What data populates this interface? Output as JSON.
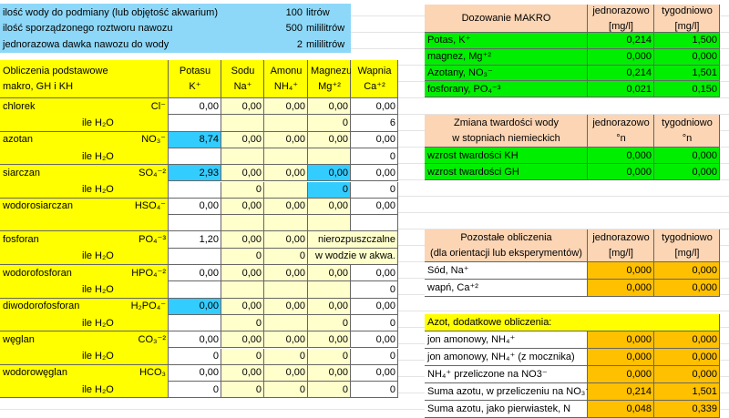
{
  "settings": {
    "rows": [
      {
        "label": "ilość wody do podmiany (lub objętość akwarium)",
        "value": "100",
        "unit": "litrów"
      },
      {
        "label": "ilość sporządzonego roztworu nawozu",
        "value": "500",
        "unit": "mililitrów"
      },
      {
        "label": "jednorazowa dawka nawozu do wody",
        "value": "2",
        "unit": "mililitrów"
      }
    ]
  },
  "basic": {
    "title": [
      "Obliczenia podstawowe",
      "makro, GH i KH"
    ],
    "columns": [
      {
        "name": "Potasu",
        "ion": "K⁺"
      },
      {
        "name": "Sodu",
        "ion": "Na⁺"
      },
      {
        "name": "Amonu",
        "ion": "NH₄⁺"
      },
      {
        "name": "Magnezu",
        "ion": "Mg⁺²"
      },
      {
        "name": "Wapnia",
        "ion": "Ca⁺²"
      }
    ],
    "rows": [
      {
        "name": "chlorek",
        "formula": "Cl⁻",
        "values": [
          "0,00",
          "0,00",
          "0,00",
          "0,00",
          "0,00"
        ],
        "water_label": "ile H₂O",
        "water": [
          null,
          null,
          null,
          "0",
          "6"
        ]
      },
      {
        "name": "azotan",
        "formula": "NO₃⁻",
        "values": [
          "8,74",
          "0,00",
          "0,00",
          "0,00",
          "0,00"
        ],
        "water_label": "ile H₂O",
        "water": [
          null,
          null,
          null,
          null,
          "0"
        ]
      },
      {
        "name": "siarczan",
        "formula": "SO₄⁻²",
        "values": [
          "2,93",
          "0,00",
          "0,00",
          "0,00",
          "0,00"
        ],
        "water_label": "ile H₂O",
        "water": [
          null,
          "0",
          null,
          "0",
          "0"
        ]
      },
      {
        "name": "wodorosiarczan",
        "formula": "HSO₄⁻",
        "values": [
          "0,00",
          "0,00",
          "0,00",
          "0,00",
          "0,00"
        ],
        "water": [
          null,
          null,
          null,
          null,
          null
        ]
      },
      {
        "name": "fosforan",
        "formula": "PO₄⁻³",
        "values": [
          "1,20",
          "0,00",
          "0,00",
          null,
          null
        ],
        "note": [
          "nierozpuszczalne",
          "w wodzie w akwa."
        ],
        "water_label": "ile H₂O",
        "water": [
          null,
          "0",
          "0",
          null,
          null
        ]
      },
      {
        "name": "wodorofosforan",
        "formula": "HPO₄⁻²",
        "values": [
          "0,00",
          "0,00",
          "0,00",
          "0,00",
          "0,00"
        ],
        "water_label": "ile H₂O",
        "water": [
          null,
          null,
          null,
          null,
          "0"
        ]
      },
      {
        "name": "diwodorofosforan",
        "formula": "H₂PO₄⁻",
        "values": [
          "0,00",
          "0,00",
          "0,00",
          "0,00",
          "0,00"
        ],
        "water_label": "ile H₂O",
        "water": [
          null,
          "0",
          null,
          "0",
          "0"
        ]
      },
      {
        "name": "węglan",
        "formula": "CO₃⁻²",
        "values": [
          "0,00",
          "0,00",
          "0,00",
          "0,00",
          "0,00"
        ],
        "water_label": "ile H₂O",
        "water": [
          "0",
          "0",
          "0",
          "0",
          "0"
        ]
      },
      {
        "name": "wodorowęglan",
        "formula": "HCO₃",
        "values": [
          "0,00",
          "0,00",
          "0,00",
          "0,00",
          "0,00"
        ],
        "water_label": "ile H₂O",
        "water": [
          "0",
          "0",
          "0",
          "0",
          "0"
        ]
      }
    ]
  },
  "macro": {
    "header": [
      "Dozowanie MAKRO"
    ],
    "col1": [
      "jednorazowo",
      "[mg/l]"
    ],
    "col2": [
      "tygodniowo",
      "[mg/l]"
    ],
    "rows": [
      {
        "label": "Potas, K⁺",
        "values": [
          "0,214",
          "1,500"
        ]
      },
      {
        "label": "magnez, Mg⁺²",
        "values": [
          "0,000",
          "0,000"
        ]
      },
      {
        "label": "Azotany, NO₃⁻",
        "values": [
          "0,214",
          "1,501"
        ]
      },
      {
        "label": "fosforany, PO₄⁻³",
        "values": [
          "0,021",
          "0,150"
        ]
      }
    ]
  },
  "hardness": {
    "header": [
      "Zmiana twardości wody",
      "w stopniach niemieckich"
    ],
    "col1": [
      "jednorazowo",
      "°n"
    ],
    "col2": [
      "tygodniowo",
      "°n"
    ],
    "rows": [
      {
        "label": "wzrost twardości KH",
        "values": [
          "0,000",
          "0,000"
        ]
      },
      {
        "label": "wzrost twardości GH",
        "values": [
          "0,000",
          "0,000"
        ]
      }
    ]
  },
  "other": {
    "header": [
      "Pozostałe obliczenia",
      "(dla orientacji lub eksperymentów)"
    ],
    "col1": [
      "jednorazowo",
      "[mg/l]"
    ],
    "col2": [
      "tygodniowo",
      "[mg/l]"
    ],
    "rows": [
      {
        "label": "Sód, Na⁺",
        "values": [
          "0,000",
          "0,000"
        ]
      },
      {
        "label": "wapń, Ca⁺²",
        "values": [
          "0,000",
          "0,000"
        ]
      }
    ],
    "nitrogen": {
      "title": "Azot, dodatkowe obliczenia:",
      "rows": [
        {
          "label": "jon amonowy, NH₄⁺",
          "values": [
            "0,000",
            "0,000"
          ]
        },
        {
          "label": "jon amonowy, NH₄⁺ (z mocznika)",
          "values": [
            "0,000",
            "0,000"
          ]
        },
        {
          "label": "NH₄⁺ przeliczone na NO3⁻",
          "values": [
            "0,000",
            "0,000"
          ]
        },
        {
          "label": "Suma azotu, w przeliczeniu na NO₃⁻",
          "values": [
            "0,214",
            "1,501"
          ]
        },
        {
          "label": "Suma azotu, jako pierwiastek, N",
          "values": [
            "0,048",
            "0,339"
          ]
        }
      ]
    }
  }
}
